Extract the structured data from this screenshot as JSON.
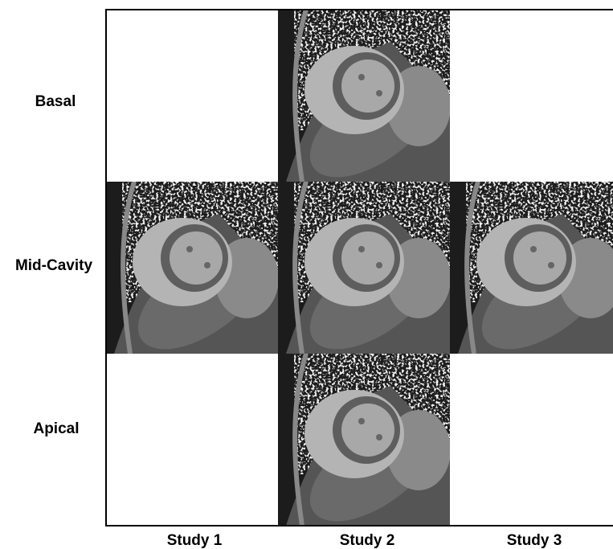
{
  "rows": [
    "Basal",
    "Mid-Cavity",
    "Apical"
  ],
  "columns": [
    "Study 1",
    "Study 2",
    "Study 3"
  ]
}
